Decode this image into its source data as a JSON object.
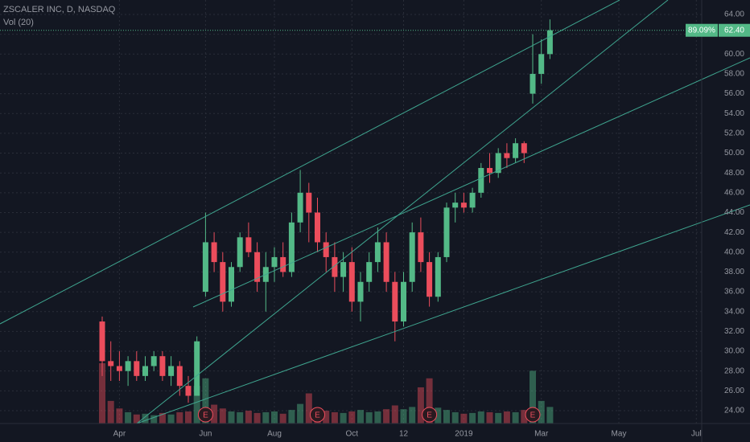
{
  "chart_data": {
    "type": "candlestick",
    "title": "ZSCALER INC, D, NASDAQ",
    "subtitle": "Vol (20)",
    "categories": [
      null,
      null,
      "Apr",
      null,
      null,
      null,
      null,
      null,
      null,
      null,
      null,
      null,
      "Jun",
      null,
      null,
      null,
      null,
      null,
      null,
      null,
      "Aug",
      null,
      null,
      null,
      null,
      null,
      null,
      null,
      null,
      "Oct",
      null,
      null,
      null,
      null,
      null,
      "12",
      null,
      null,
      null,
      null,
      null,
      null,
      "2019",
      null,
      null,
      null,
      null,
      null,
      null,
      null,
      null,
      "Mar",
      null,
      null,
      null,
      null,
      null,
      null,
      null,
      null,
      "May",
      null,
      null,
      null,
      null,
      null,
      null,
      null,
      null,
      "Jul"
    ],
    "open": [
      33,
      29,
      28.5,
      28,
      29,
      27.5,
      28.5,
      29.5,
      27.5,
      28.5,
      26.5,
      25.5,
      36,
      41,
      39,
      35,
      38.5,
      41.5,
      40,
      37,
      38.5,
      39.5,
      38,
      43,
      46,
      44,
      41,
      39.5,
      37.5,
      39,
      35,
      37,
      39,
      41,
      37,
      33,
      37,
      42,
      39,
      35.5,
      39.5,
      44.5,
      45,
      44.5,
      46,
      48.5,
      48,
      50,
      49.5,
      51,
      56,
      58,
      60,
      null,
      null,
      null,
      null,
      null,
      null,
      null,
      null,
      null,
      null,
      null,
      null,
      null,
      null,
      null,
      null,
      null
    ],
    "high": [
      33.5,
      31,
      30,
      29.5,
      30,
      29.5,
      30,
      30,
      29.5,
      29,
      27.5,
      31.5,
      44,
      42,
      40,
      39,
      42,
      43,
      41,
      40,
      40.5,
      41,
      44,
      48.3,
      47,
      45.5,
      42,
      41,
      40,
      40.5,
      38,
      40,
      42.5,
      42,
      38,
      38,
      43,
      43.5,
      40,
      40,
      45,
      46,
      46,
      46.5,
      49,
      50,
      50.5,
      51,
      51.5,
      51.2,
      62,
      61.5,
      63.5,
      null,
      null,
      null,
      null,
      null,
      null,
      null,
      null,
      null,
      null,
      null,
      null,
      null,
      null,
      null,
      null,
      null
    ],
    "low": [
      27.5,
      27,
      27,
      26.5,
      27,
      27,
      28,
      27,
      26.5,
      25.5,
      24.8,
      25.5,
      35.5,
      38,
      34,
      34.5,
      38,
      39.5,
      36,
      34,
      37,
      37.5,
      37.5,
      42,
      41,
      40,
      38,
      36,
      36,
      34,
      33,
      36,
      38,
      36,
      31,
      32.5,
      36,
      38,
      34.5,
      35,
      39,
      43,
      44,
      44,
      45.5,
      47,
      47.5,
      48.5,
      49,
      49,
      55,
      57,
      59.5,
      null,
      null,
      null,
      null,
      null,
      null,
      null,
      null,
      null,
      null,
      null,
      null,
      null,
      null,
      null,
      null,
      null
    ],
    "close": [
      29,
      28.5,
      28,
      29,
      27.5,
      28.5,
      29.5,
      27.5,
      28.5,
      26.5,
      25.5,
      31,
      41,
      39,
      35,
      38.5,
      41.5,
      40,
      37,
      38.5,
      39.5,
      38,
      43,
      46,
      44,
      41,
      39.5,
      37.5,
      39,
      35,
      37,
      39,
      41,
      37,
      33,
      37,
      42,
      39,
      35.5,
      39.5,
      44.5,
      45,
      44.5,
      46,
      48.5,
      48,
      50,
      49.5,
      51,
      50,
      58,
      60,
      62.4,
      null,
      null,
      null,
      null,
      null,
      null,
      null,
      null,
      null,
      null,
      null,
      null,
      null,
      null,
      null,
      null,
      null
    ],
    "volume": [
      8,
      3,
      2,
      1.5,
      1.2,
      1.3,
      1.1,
      1.4,
      1.2,
      1.5,
      1.6,
      5,
      6,
      2.5,
      2,
      1.6,
      1.5,
      1.7,
      1.4,
      1.5,
      1.6,
      1.3,
      1.8,
      2.6,
      4,
      2,
      1.7,
      1.5,
      1.4,
      1.6,
      1.8,
      1.5,
      1.6,
      1.9,
      2.4,
      1.9,
      2.2,
      4.8,
      6,
      2.1,
      1.8,
      1.5,
      1.3,
      1.4,
      1.6,
      1.5,
      1.4,
      1.6,
      1.5,
      1.8,
      7,
      3,
      2.2,
      null,
      null,
      null,
      null,
      null,
      null,
      null,
      null,
      null,
      null,
      null,
      null,
      null,
      null,
      null,
      null,
      null
    ],
    "up_color": "#53b987",
    "down_color": "#eb4d5c",
    "ylim": [
      22.7,
      65.46
    ],
    "yticks": [
      {
        "value": 64,
        "label": "64.00"
      },
      {
        "value": 62,
        "label": "62.00"
      },
      {
        "value": 60,
        "label": "60.00"
      },
      {
        "value": 58,
        "label": "58.00"
      },
      {
        "value": 56,
        "label": "56.00"
      },
      {
        "value": 54,
        "label": "54.00"
      },
      {
        "value": 52,
        "label": "52.00"
      },
      {
        "value": 50,
        "label": "50.00"
      },
      {
        "value": 48,
        "label": "48.00"
      },
      {
        "value": 46,
        "label": "46.00"
      },
      {
        "value": 44,
        "label": "44.00"
      },
      {
        "value": 42,
        "label": "42.00"
      },
      {
        "value": 40,
        "label": "40.00"
      },
      {
        "value": 38,
        "label": "38.00"
      },
      {
        "value": 36,
        "label": "36.00"
      },
      {
        "value": 34,
        "label": "34.00"
      },
      {
        "value": 32,
        "label": "32.00"
      },
      {
        "value": 30,
        "label": "30.00"
      },
      {
        "value": 28,
        "label": "28.00"
      },
      {
        "value": 26,
        "label": "26.00"
      },
      {
        "value": 24,
        "label": "24.00"
      }
    ],
    "grid": true,
    "last_price": {
      "value": 62.4,
      "label": "62.40"
    },
    "change": {
      "value": 89.09,
      "label": "89.09%"
    },
    "earnings_markers": [
      "E",
      "E",
      "E",
      "E"
    ]
  }
}
